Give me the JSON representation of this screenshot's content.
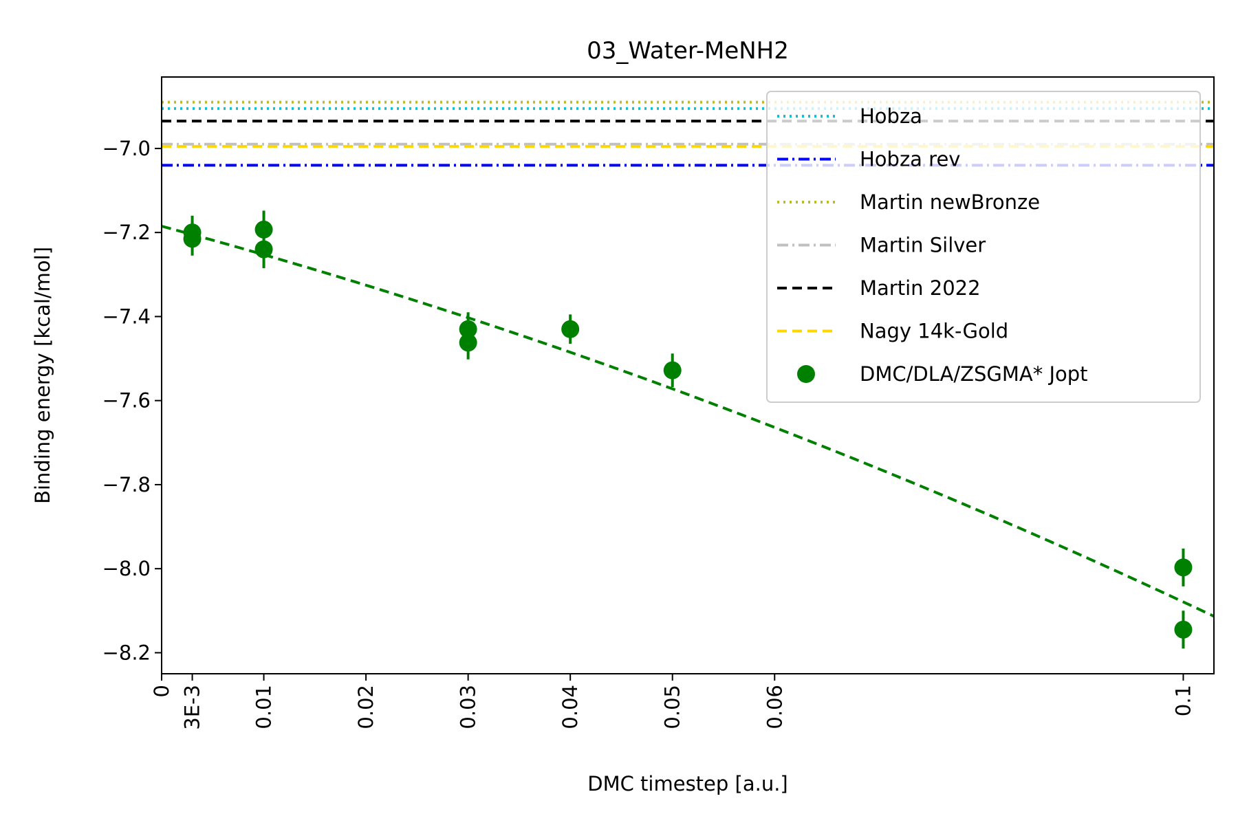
{
  "chart_data": {
    "type": "scatter",
    "title": "03_Water-MeNH2",
    "xlabel": "DMC timestep [a.u.]",
    "ylabel": "Binding energy [kcal/mol]",
    "xlim": [
      0,
      0.103
    ],
    "ylim": [
      -8.25,
      -6.83
    ],
    "x_ticks": [
      {
        "value": 0,
        "label": "0"
      },
      {
        "value": 0.003,
        "label": "3E-3"
      },
      {
        "value": 0.01,
        "label": "0.01"
      },
      {
        "value": 0.02,
        "label": "0.02"
      },
      {
        "value": 0.03,
        "label": "0.03"
      },
      {
        "value": 0.04,
        "label": "0.04"
      },
      {
        "value": 0.05,
        "label": "0.05"
      },
      {
        "value": 0.06,
        "label": "0.06"
      },
      {
        "value": 0.1,
        "label": "0.1"
      }
    ],
    "y_ticks": [
      {
        "value": -7.0,
        "label": "−7.0"
      },
      {
        "value": -7.2,
        "label": "−7.2"
      },
      {
        "value": -7.4,
        "label": "−7.4"
      },
      {
        "value": -7.6,
        "label": "−7.6"
      },
      {
        "value": -7.8,
        "label": "−7.8"
      },
      {
        "value": -8.0,
        "label": "−8.0"
      },
      {
        "value": -8.2,
        "label": "−8.2"
      }
    ],
    "reference_lines": [
      {
        "name": "Hobza",
        "y": -6.905,
        "color": "#17becf",
        "style": "dotted"
      },
      {
        "name": "Hobza rev",
        "y": -7.04,
        "color": "#0000ff",
        "style": "dashdot"
      },
      {
        "name": "Martin newBronze",
        "y": -6.89,
        "color": "#bcbd22",
        "style": "dotted"
      },
      {
        "name": "Martin Silver",
        "y": -6.99,
        "color": "#c0c0c0",
        "style": "dashdot"
      },
      {
        "name": "Martin 2022",
        "y": -6.935,
        "color": "#000000",
        "style": "dashed"
      },
      {
        "name": "Nagy 14k-Gold",
        "y": -6.995,
        "color": "#ffd700",
        "style": "dashed"
      }
    ],
    "series": [
      {
        "name": "DMC/DLA/ZSGMA* Jopt",
        "color": "#008000",
        "points": [
          {
            "x": 0.003,
            "y": -7.2,
            "err": 0.04
          },
          {
            "x": 0.003,
            "y": -7.215,
            "err": 0.04
          },
          {
            "x": 0.01,
            "y": -7.193,
            "err": 0.045
          },
          {
            "x": 0.01,
            "y": -7.24,
            "err": 0.045
          },
          {
            "x": 0.03,
            "y": -7.43,
            "err": 0.04
          },
          {
            "x": 0.03,
            "y": -7.462,
            "err": 0.04
          },
          {
            "x": 0.04,
            "y": -7.43,
            "err": 0.035
          },
          {
            "x": 0.05,
            "y": -7.528,
            "err": 0.04
          },
          {
            "x": 0.1,
            "y": -7.997,
            "err": 0.045
          },
          {
            "x": 0.1,
            "y": -8.145,
            "err": 0.045
          }
        ]
      }
    ],
    "fit": {
      "color": "#008000",
      "style": "dashed",
      "coefficients": [
        -7.185,
        -6.54,
        -24
      ]
    },
    "legend": {
      "position": "top-right",
      "order": [
        "Hobza",
        "Hobza rev",
        "Martin newBronze",
        "Martin Silver",
        "Martin 2022",
        "Nagy 14k-Gold",
        "DMC/DLA/ZSGMA* Jopt"
      ]
    },
    "grid": false
  }
}
